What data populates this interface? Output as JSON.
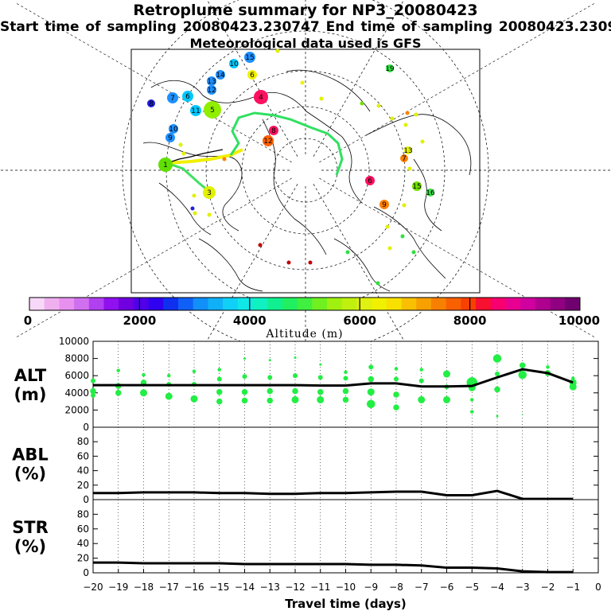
{
  "header": {
    "title": "Retroplume summary for NP3_20080423",
    "sampling_line": "Start time of sampling 20080423.230747     End time of sampling 20080423.230952",
    "met_line": "Meteorological data used is GFS"
  },
  "colors": {
    "plume_green": "#22ee44",
    "line": "#000000"
  },
  "chart_data": [
    {
      "type": "map",
      "name": "retroplume-map",
      "description_labels": [
        "1",
        "2",
        "3",
        "4",
        "5",
        "6",
        "7",
        "8",
        "9",
        "10",
        "11",
        "12",
        "13",
        "14",
        "15",
        "16",
        "17",
        "18",
        "19",
        "20"
      ],
      "clusters": [
        {
          "label": "15",
          "color": "#1e90ff"
        },
        {
          "label": "10",
          "color": "#00c8ff"
        },
        {
          "label": "6",
          "color": "#f0f000"
        },
        {
          "label": "14",
          "color": "#1e90ff"
        },
        {
          "label": "13",
          "color": "#1e90ff"
        },
        {
          "label": "12",
          "color": "#1e90ff"
        },
        {
          "label": "4",
          "color": "#ff1060"
        },
        {
          "label": "8",
          "color": "#2020e0"
        },
        {
          "label": "7",
          "color": "#1e90ff"
        },
        {
          "label": "6",
          "color": "#00c8ff"
        },
        {
          "label": "11",
          "color": "#00c8ff"
        },
        {
          "label": "5",
          "color": "#90ee00"
        },
        {
          "label": "10",
          "color": "#1e90ff"
        },
        {
          "label": "9",
          "color": "#1e90ff"
        },
        {
          "label": "1",
          "color": "#60e000"
        },
        {
          "label": "3",
          "color": "#e0f000"
        },
        {
          "label": "12",
          "color": "#ff6000"
        },
        {
          "label": "8",
          "color": "#ff1060"
        },
        {
          "label": "19",
          "color": "#30e040"
        },
        {
          "label": "13",
          "color": "#e0f000"
        },
        {
          "label": "16",
          "color": "#30e040"
        },
        {
          "label": "6",
          "color": "#ff1060"
        },
        {
          "label": "9",
          "color": "#ff8000"
        },
        {
          "label": "7",
          "color": "#ff8000"
        },
        {
          "label": "15",
          "color": "#70e000"
        }
      ]
    },
    {
      "type": "colorbar",
      "name": "altitude-colorbar",
      "ticks": [
        "0",
        "2000",
        "4000",
        "6000",
        "8000",
        "10000"
      ],
      "range": [
        0,
        10000
      ],
      "label": "Altitude (m)",
      "colors": [
        "#f8d8f8",
        "#f0b0f0",
        "#e890f0",
        "#d070f0",
        "#b040f0",
        "#9010f0",
        "#7000e0",
        "#5000e8",
        "#3000f0",
        "#1030f0",
        "#1060f8",
        "#1090f8",
        "#10b0f8",
        "#10d0f8",
        "#10e8e8",
        "#10f0c0",
        "#10f090",
        "#20f060",
        "#40f040",
        "#70f020",
        "#a0f010",
        "#c0f010",
        "#e0f010",
        "#f0f000",
        "#f8e000",
        "#f8c000",
        "#f8a000",
        "#f88000",
        "#f86000",
        "#f84000",
        "#f81030",
        "#f80070",
        "#e80090",
        "#d000a0",
        "#b00090",
        "#900080",
        "#700070"
      ]
    },
    {
      "type": "line",
      "name": "ALT",
      "label_line1": "ALT",
      "label_line2": "(m)",
      "ylim": [
        0,
        10000
      ],
      "yticks": [
        "0",
        "2000",
        "4000",
        "6000",
        "8000",
        "10000"
      ],
      "x": [
        -20,
        -19,
        -18,
        -17,
        -16,
        -15,
        -14,
        -13,
        -12,
        -11,
        -10,
        -9,
        -8,
        -7,
        -6,
        -5,
        -4,
        -3,
        -2,
        -1
      ],
      "series": [
        {
          "name": "mean altitude",
          "values": [
            4900,
            4900,
            4900,
            4900,
            4900,
            4900,
            4900,
            4900,
            4900,
            4850,
            4850,
            5100,
            5100,
            4750,
            4750,
            4800,
            5800,
            6750,
            6300,
            5200
          ]
        }
      ],
      "scatter": [
        {
          "x": -20,
          "y": 5400,
          "s": 4
        },
        {
          "x": -20,
          "y": 4200,
          "s": 5
        },
        {
          "x": -20,
          "y": 3700,
          "s": 4
        },
        {
          "x": -19,
          "y": 6600,
          "s": 3
        },
        {
          "x": -19,
          "y": 4800,
          "s": 5
        },
        {
          "x": -19,
          "y": 4000,
          "s": 5
        },
        {
          "x": -18,
          "y": 6100,
          "s": 3
        },
        {
          "x": -18,
          "y": 5200,
          "s": 5
        },
        {
          "x": -18,
          "y": 4000,
          "s": 6
        },
        {
          "x": -17,
          "y": 6000,
          "s": 3
        },
        {
          "x": -17,
          "y": 5000,
          "s": 4
        },
        {
          "x": -17,
          "y": 3600,
          "s": 6
        },
        {
          "x": -16,
          "y": 6500,
          "s": 3
        },
        {
          "x": -16,
          "y": 5000,
          "s": 4
        },
        {
          "x": -16,
          "y": 3300,
          "s": 6
        },
        {
          "x": -15,
          "y": 6700,
          "s": 3
        },
        {
          "x": -15,
          "y": 5600,
          "s": 4
        },
        {
          "x": -15,
          "y": 4100,
          "s": 5
        },
        {
          "x": -15,
          "y": 3000,
          "s": 5
        },
        {
          "x": -14,
          "y": 8000,
          "s": 2
        },
        {
          "x": -14,
          "y": 5900,
          "s": 4
        },
        {
          "x": -14,
          "y": 4100,
          "s": 5
        },
        {
          "x": -14,
          "y": 3100,
          "s": 5
        },
        {
          "x": -13,
          "y": 7800,
          "s": 2
        },
        {
          "x": -13,
          "y": 5800,
          "s": 4
        },
        {
          "x": -13,
          "y": 4200,
          "s": 5
        },
        {
          "x": -13,
          "y": 3100,
          "s": 5
        },
        {
          "x": -12,
          "y": 8100,
          "s": 2
        },
        {
          "x": -12,
          "y": 6000,
          "s": 4
        },
        {
          "x": -12,
          "y": 4200,
          "s": 5
        },
        {
          "x": -12,
          "y": 3200,
          "s": 6
        },
        {
          "x": -11,
          "y": 7300,
          "s": 2
        },
        {
          "x": -11,
          "y": 5800,
          "s": 4
        },
        {
          "x": -11,
          "y": 4100,
          "s": 5
        },
        {
          "x": -11,
          "y": 3200,
          "s": 6
        },
        {
          "x": -10,
          "y": 6400,
          "s": 3
        },
        {
          "x": -10,
          "y": 5700,
          "s": 4
        },
        {
          "x": -10,
          "y": 4200,
          "s": 5
        },
        {
          "x": -10,
          "y": 3200,
          "s": 5
        },
        {
          "x": -9,
          "y": 7000,
          "s": 4
        },
        {
          "x": -9,
          "y": 5600,
          "s": 5
        },
        {
          "x": -9,
          "y": 4100,
          "s": 6
        },
        {
          "x": -9,
          "y": 2700,
          "s": 7
        },
        {
          "x": -8,
          "y": 6800,
          "s": 3
        },
        {
          "x": -8,
          "y": 5600,
          "s": 4
        },
        {
          "x": -8,
          "y": 3800,
          "s": 5
        },
        {
          "x": -8,
          "y": 2300,
          "s": 5
        },
        {
          "x": -7,
          "y": 6700,
          "s": 3
        },
        {
          "x": -7,
          "y": 5400,
          "s": 4
        },
        {
          "x": -7,
          "y": 3200,
          "s": 6
        },
        {
          "x": -6,
          "y": 6200,
          "s": 6
        },
        {
          "x": -6,
          "y": 4700,
          "s": 4
        },
        {
          "x": -6,
          "y": 3200,
          "s": 6
        },
        {
          "x": -5,
          "y": 5200,
          "s": 9
        },
        {
          "x": -5,
          "y": 4600,
          "s": 6
        },
        {
          "x": -5,
          "y": 3200,
          "s": 3
        },
        {
          "x": -5,
          "y": 1800,
          "s": 3
        },
        {
          "x": -4,
          "y": 8000,
          "s": 7
        },
        {
          "x": -4,
          "y": 6200,
          "s": 4
        },
        {
          "x": -4,
          "y": 4400,
          "s": 5
        },
        {
          "x": -4,
          "y": 1300,
          "s": 2
        },
        {
          "x": -3,
          "y": 7200,
          "s": 5
        },
        {
          "x": -3,
          "y": 6100,
          "s": 7
        },
        {
          "x": -3,
          "y": 1500,
          "s": 1
        },
        {
          "x": -2,
          "y": 7000,
          "s": 3
        },
        {
          "x": -2,
          "y": 6300,
          "s": 5
        },
        {
          "x": -1,
          "y": 5700,
          "s": 3
        },
        {
          "x": -1,
          "y": 5200,
          "s": 6
        },
        {
          "x": -1,
          "y": 4700,
          "s": 6
        }
      ]
    },
    {
      "type": "line",
      "name": "ABL",
      "label_line1": "ABL",
      "label_line2": "(%)",
      "ylim": [
        0,
        100
      ],
      "yticks": [
        "0",
        "20",
        "40",
        "60",
        "80"
      ],
      "x": [
        -20,
        -19,
        -18,
        -17,
        -16,
        -15,
        -14,
        -13,
        -12,
        -11,
        -10,
        -9,
        -8,
        -7,
        -6,
        -5,
        -4,
        -3,
        -2,
        -1
      ],
      "series": [
        {
          "name": "ABL fraction",
          "values": [
            9,
            9,
            10,
            10,
            10,
            9,
            9,
            8,
            8,
            9,
            9,
            10,
            11,
            11,
            6,
            6,
            12,
            1,
            1,
            1
          ]
        }
      ]
    },
    {
      "type": "line",
      "name": "STR",
      "label_line1": "STR",
      "label_line2": "(%)",
      "ylim": [
        0,
        100
      ],
      "yticks": [
        "0",
        "20",
        "40",
        "60",
        "80"
      ],
      "x": [
        -20,
        -19,
        -18,
        -17,
        -16,
        -15,
        -14,
        -13,
        -12,
        -11,
        -10,
        -9,
        -8,
        -7,
        -6,
        -5,
        -4,
        -3,
        -2,
        -1
      ],
      "series": [
        {
          "name": "STR fraction",
          "values": [
            14,
            14,
            13,
            13,
            13,
            13,
            12,
            12,
            12,
            12,
            12,
            11,
            11,
            10,
            7,
            7,
            6,
            2,
            1,
            1
          ]
        }
      ],
      "xticks": [
        "−20",
        "−19",
        "−18",
        "−17",
        "−16",
        "−15",
        "−14",
        "−13",
        "−12",
        "−11",
        "−10",
        "−9",
        "−8",
        "−7",
        "−6",
        "−5",
        "−4",
        "−3",
        "−2",
        "−1",
        "0"
      ],
      "xlabel": "Travel time (days)"
    }
  ]
}
